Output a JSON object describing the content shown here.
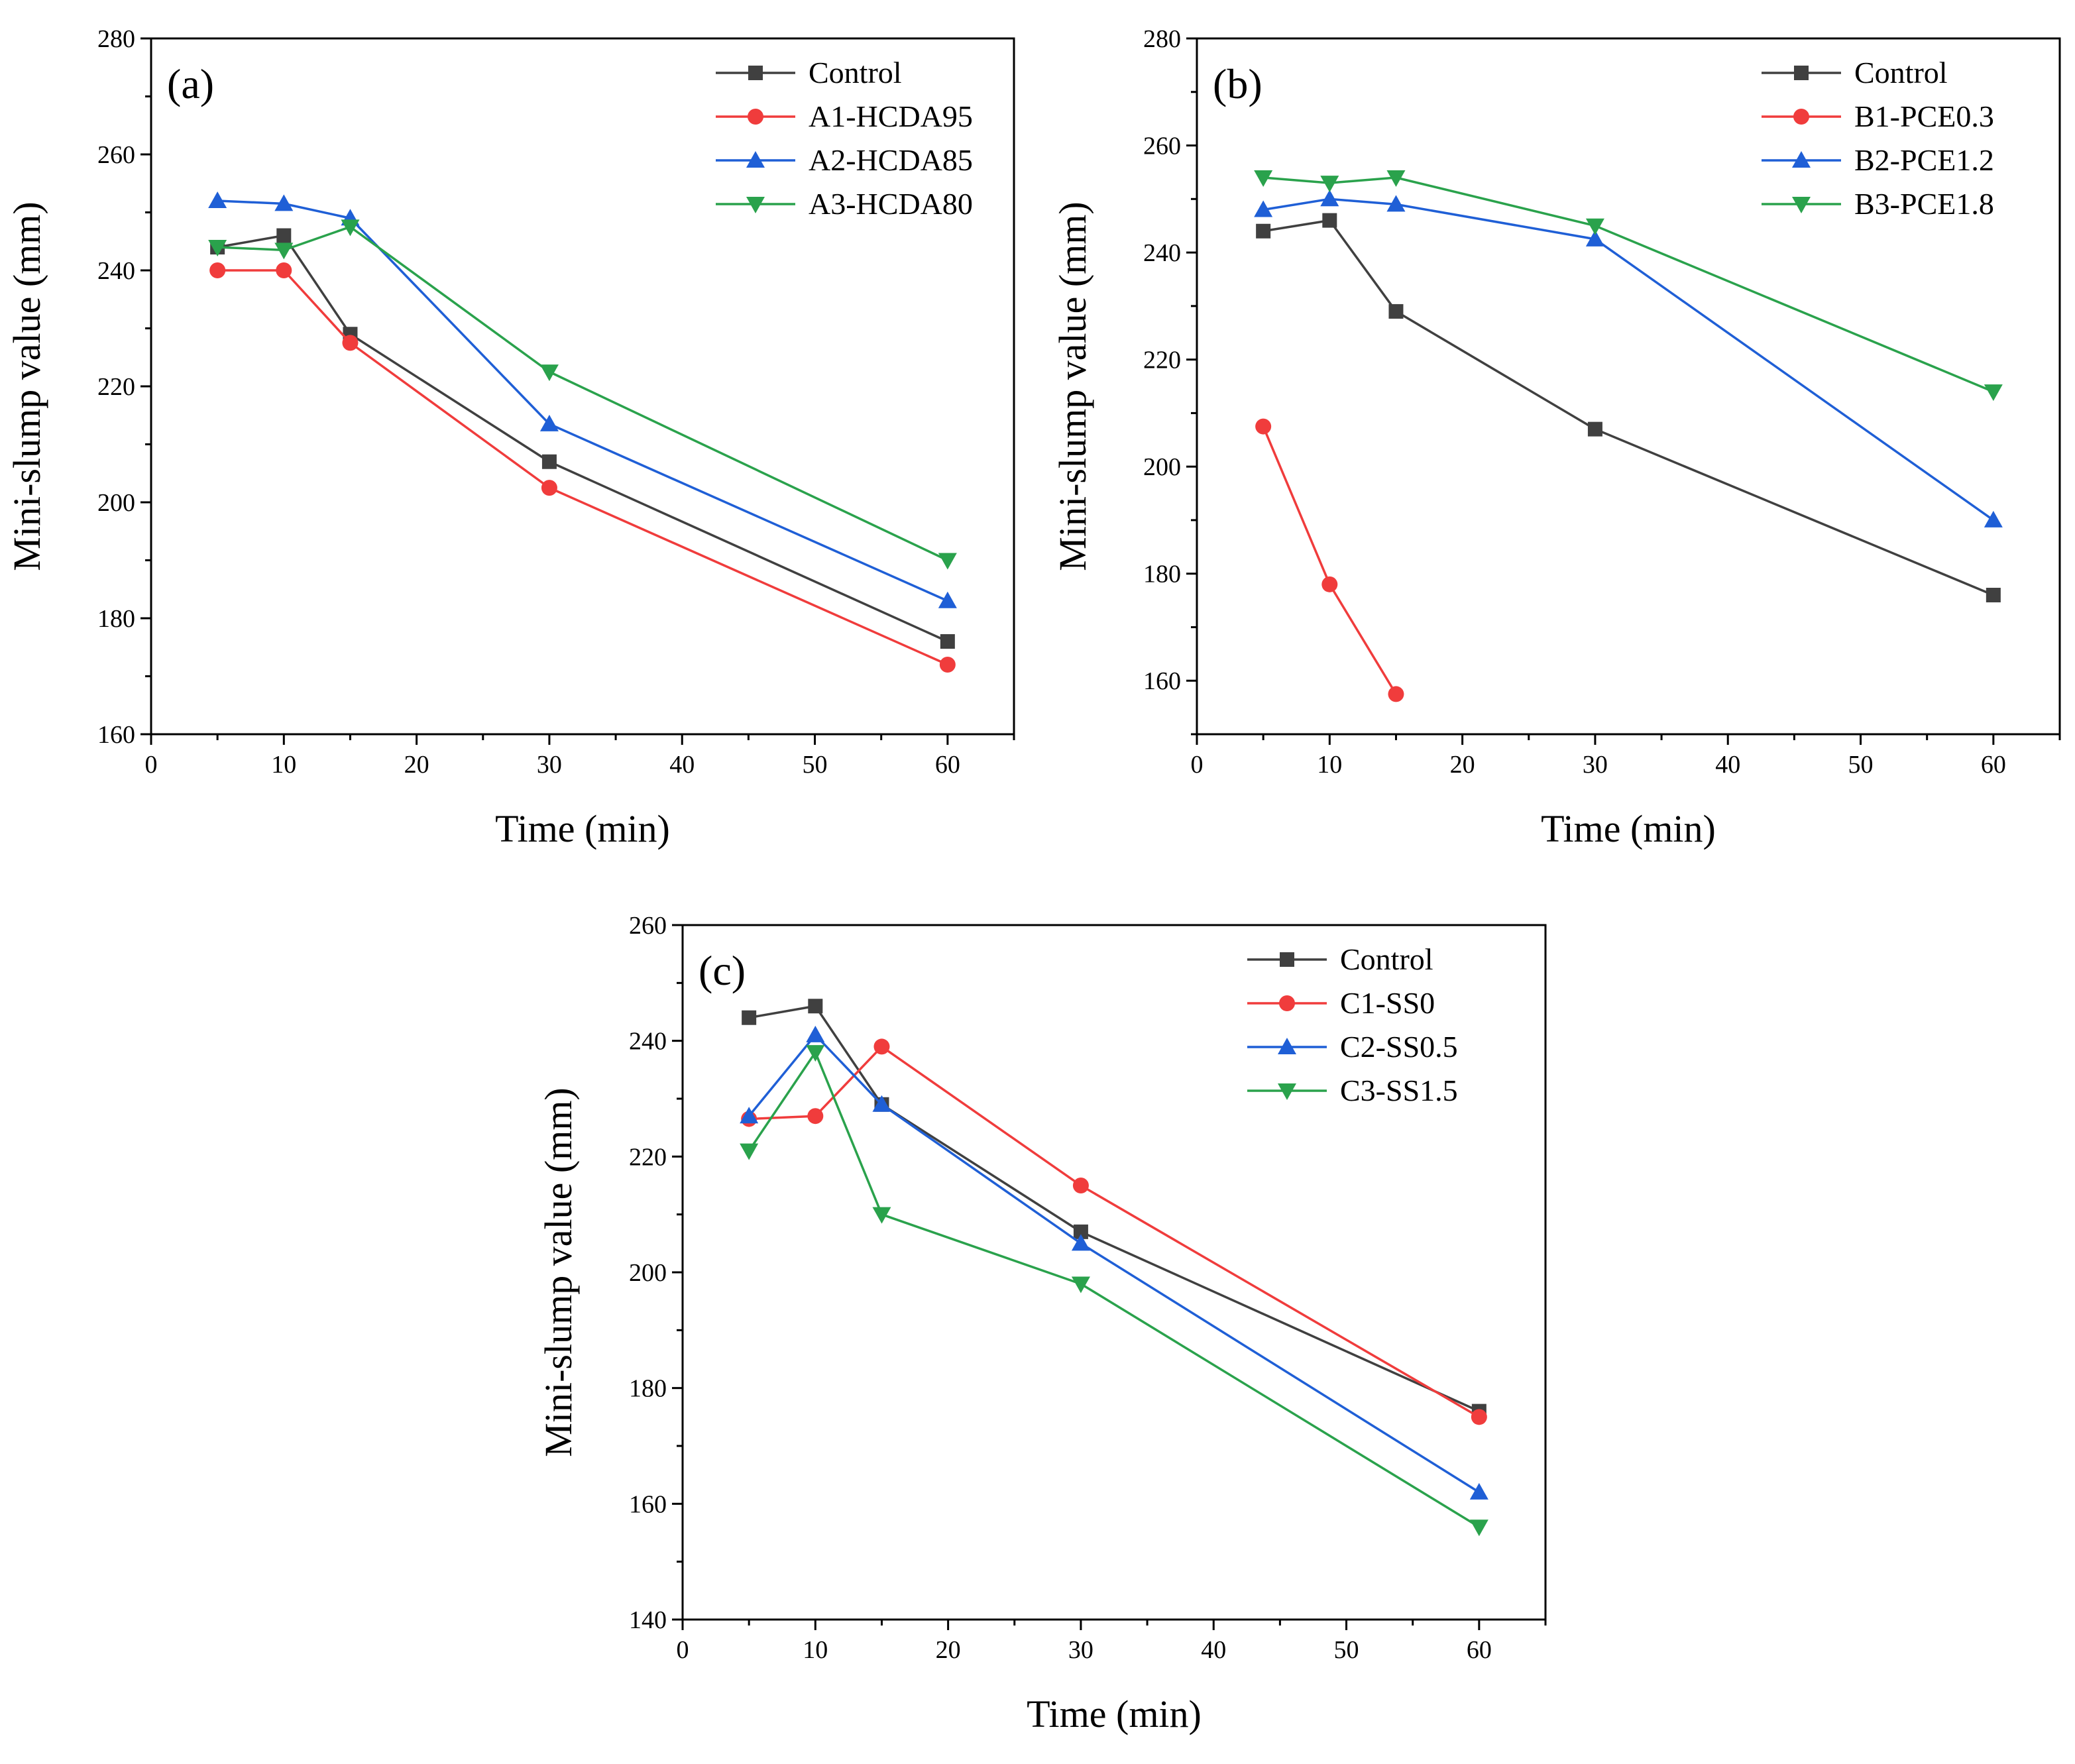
{
  "figure": {
    "colors": {
      "Control": "#404040",
      "series1": "#f03c3c",
      "series2": "#1f5fd6",
      "series3": "#2aa24c"
    }
  },
  "chart_data": [
    {
      "panel_label": "(a)",
      "type": "line",
      "xlabel": "Time (min)",
      "ylabel": "Mini-slump value (mm)",
      "xlim": [
        0,
        65
      ],
      "ylim": [
        160,
        280
      ],
      "xticks": [
        0,
        10,
        20,
        30,
        40,
        50,
        60
      ],
      "yticks": [
        160,
        180,
        200,
        220,
        240,
        260,
        280
      ],
      "legend_position": "top-right",
      "series": [
        {
          "name": "Control",
          "marker": "square",
          "color": "#404040",
          "x": [
            5,
            10,
            15,
            30,
            60
          ],
          "y": [
            244,
            246,
            229,
            207,
            176
          ]
        },
        {
          "name": "A1-HCDA95",
          "marker": "circle",
          "color": "#f03c3c",
          "x": [
            5,
            10,
            15,
            30,
            60
          ],
          "y": [
            240,
            240,
            227.5,
            202.5,
            172
          ]
        },
        {
          "name": "A2-HCDA85",
          "marker": "triangle-up",
          "color": "#1f5fd6",
          "x": [
            5,
            10,
            15,
            30,
            60
          ],
          "y": [
            252,
            251.5,
            249,
            213.5,
            183
          ]
        },
        {
          "name": "A3-HCDA80",
          "marker": "triangle-down",
          "color": "#2aa24c",
          "x": [
            5,
            10,
            15,
            30,
            60
          ],
          "y": [
            244,
            243.5,
            247.5,
            222.5,
            190
          ]
        }
      ]
    },
    {
      "panel_label": "(b)",
      "type": "line",
      "xlabel": "Time (min)",
      "ylabel": "Mini-slump value (mm)",
      "xlim": [
        0,
        65
      ],
      "ylim": [
        150,
        280
      ],
      "xticks": [
        0,
        10,
        20,
        30,
        40,
        50,
        60
      ],
      "yticks": [
        160,
        180,
        200,
        220,
        240,
        260,
        280
      ],
      "legend_position": "top-right",
      "series": [
        {
          "name": "Control",
          "marker": "square",
          "color": "#404040",
          "x": [
            5,
            10,
            15,
            30,
            60
          ],
          "y": [
            244,
            246,
            229,
            207,
            176
          ]
        },
        {
          "name": "B1-PCE0.3",
          "marker": "circle",
          "color": "#f03c3c",
          "x": [
            5,
            10,
            15
          ],
          "y": [
            207.5,
            178,
            157.5
          ]
        },
        {
          "name": "B2-PCE1.2",
          "marker": "triangle-up",
          "color": "#1f5fd6",
          "x": [
            5,
            10,
            15,
            30,
            60
          ],
          "y": [
            248,
            250,
            249,
            242.5,
            190
          ]
        },
        {
          "name": "B3-PCE1.8",
          "marker": "triangle-down",
          "color": "#2aa24c",
          "x": [
            5,
            10,
            15,
            30,
            60
          ],
          "y": [
            254,
            253,
            254,
            245,
            214
          ]
        }
      ]
    },
    {
      "panel_label": "(c)",
      "type": "line",
      "xlabel": "Time (min)",
      "ylabel": "Mini-slump value (mm)",
      "xlim": [
        0,
        65
      ],
      "ylim": [
        140,
        260
      ],
      "xticks": [
        0,
        10,
        20,
        30,
        40,
        50,
        60
      ],
      "yticks": [
        140,
        160,
        180,
        200,
        220,
        240,
        260
      ],
      "legend_position": "top-right",
      "series": [
        {
          "name": "Control",
          "marker": "square",
          "color": "#404040",
          "x": [
            5,
            10,
            15,
            30,
            60
          ],
          "y": [
            244,
            246,
            229,
            207,
            176
          ]
        },
        {
          "name": "C1-SS0",
          "marker": "circle",
          "color": "#f03c3c",
          "x": [
            5,
            10,
            15,
            30,
            60
          ],
          "y": [
            226.5,
            227,
            239,
            215,
            175
          ]
        },
        {
          "name": "C2-SS0.5",
          "marker": "triangle-up",
          "color": "#1f5fd6",
          "x": [
            5,
            10,
            15,
            30,
            60
          ],
          "y": [
            227,
            241,
            229,
            205,
            162
          ]
        },
        {
          "name": "C3-SS1.5",
          "marker": "triangle-down",
          "color": "#2aa24c",
          "x": [
            5,
            10,
            15,
            30,
            60
          ],
          "y": [
            221,
            238,
            210,
            198,
            156
          ]
        }
      ]
    }
  ]
}
